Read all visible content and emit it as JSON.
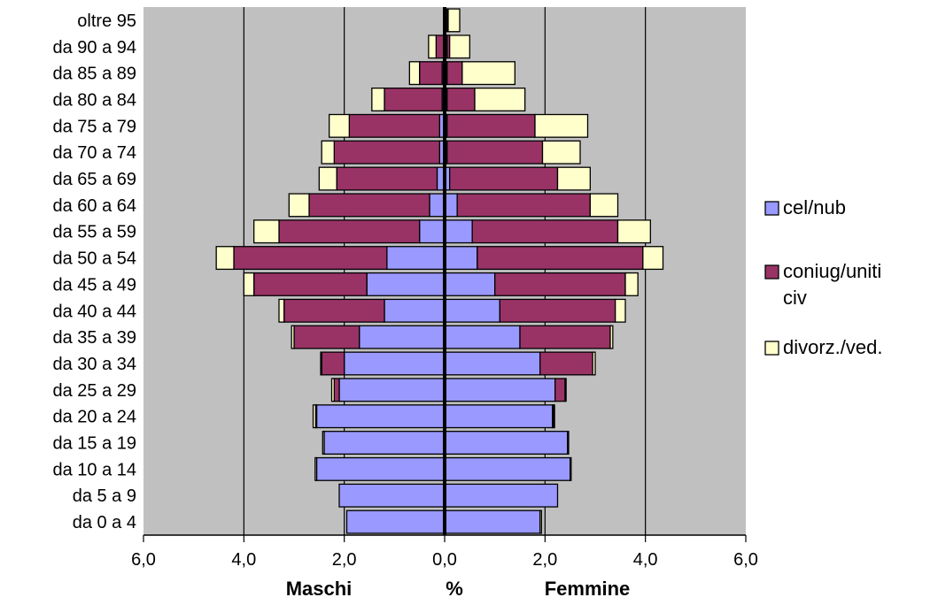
{
  "chart_data": {
    "type": "bar",
    "orientation": "horizontal-population-pyramid",
    "stacked": true,
    "categories": [
      "oltre 95",
      "da 90 a 94",
      "da 85 a 89",
      "da 80 a 84",
      "da 75 a 79",
      "da 70 a 74",
      "da 65 a 69",
      "da 60 a 64",
      "da 55 a 59",
      "da 50 a 54",
      "da 45 a 49",
      "da 40 a 44",
      "da 35 a 39",
      "da 30 a 34",
      "da 25 a 29",
      "da 20 a 24",
      "da 15 a 19",
      "da 10 a 14",
      "da 5 a 9",
      "da 0 a 4"
    ],
    "male": {
      "label": "Maschi",
      "series": [
        {
          "values": [
            0,
            0.02,
            0.05,
            0.05,
            0.1,
            0.1,
            0.15,
            0.3,
            0.5,
            1.15,
            1.55,
            1.2,
            1.7,
            2.0,
            2.1,
            2.55,
            2.4,
            2.55,
            2.1,
            1.95
          ]
        },
        {
          "values": [
            0,
            0.15,
            0.45,
            1.15,
            1.8,
            2.1,
            2.0,
            2.4,
            2.8,
            3.05,
            2.25,
            2.0,
            1.3,
            0.45,
            0.1,
            0.02,
            0,
            0,
            0,
            0
          ]
        },
        {
          "values": [
            0.02,
            0.15,
            0.2,
            0.25,
            0.4,
            0.25,
            0.35,
            0.4,
            0.5,
            0.35,
            0.2,
            0.1,
            0.05,
            0.02,
            0.05,
            0.05,
            0.03,
            0.03,
            0,
            0
          ]
        }
      ]
    },
    "female": {
      "label": "Femmine",
      "series": [
        {
          "values": [
            0.05,
            0.05,
            0.05,
            0.05,
            0.05,
            0.05,
            0.1,
            0.25,
            0.55,
            0.65,
            1.0,
            1.1,
            1.5,
            1.9,
            2.2,
            2.15,
            2.45,
            2.5,
            2.25,
            1.9
          ]
        },
        {
          "values": [
            0.02,
            0.05,
            0.3,
            0.55,
            1.75,
            1.9,
            2.15,
            2.65,
            2.9,
            3.3,
            2.6,
            2.3,
            1.8,
            1.05,
            0.2,
            0.02,
            0,
            0,
            0,
            0
          ]
        },
        {
          "values": [
            0.23,
            0.4,
            1.05,
            1.0,
            1.05,
            0.75,
            0.65,
            0.55,
            0.65,
            0.4,
            0.25,
            0.2,
            0.05,
            0.05,
            0.02,
            0.02,
            0.02,
            0.02,
            0,
            0.03
          ]
        }
      ]
    },
    "legend": [
      "cel/nub",
      "coniug/uniti civ",
      "divorz./ved."
    ],
    "legend_lines": [
      [
        "cel/nub"
      ],
      [
        "coniug/uniti",
        "civ"
      ],
      [
        "divorz./ved."
      ]
    ],
    "legend_position": "right",
    "colors": [
      "#9999ff",
      "#993366",
      "#ffffcc"
    ],
    "plot_background": "#c0c0c0",
    "xticks": [
      "6,0",
      "4,0",
      "2,0",
      "0,0",
      "2,0",
      "4,0",
      "6,0"
    ],
    "xlim": [
      -6,
      6
    ],
    "xlabel_left": "Maschi",
    "xlabel_center": "%",
    "xlabel_right": "Femmine",
    "grid": "vertical"
  }
}
